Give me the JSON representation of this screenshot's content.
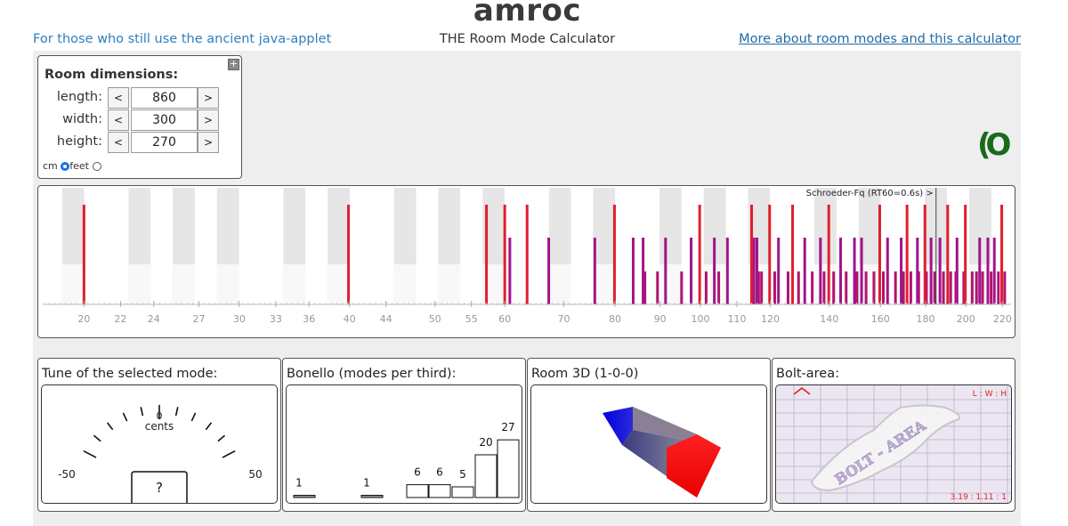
{
  "header": {
    "title": "amroc",
    "subtitle": "THE Room Mode Calculator",
    "java_link": "For those who still use the ancient java-applet",
    "more_link": "More about room modes and this calculator"
  },
  "dimensions": {
    "heading": "Room dimensions:",
    "expand": "+",
    "rows": [
      {
        "label": "length:",
        "value": "860",
        "dec": "<",
        "inc": ">"
      },
      {
        "label": "width:",
        "value": "300",
        "dec": "<",
        "inc": ">"
      },
      {
        "label": "height:",
        "value": "270",
        "dec": "<",
        "inc": ">"
      }
    ],
    "unit_cm": "cm",
    "unit_feet": "feet",
    "selected_unit": "cm"
  },
  "logo_text": "(O",
  "keyboard": {
    "schroeder_label": "Schroeder-Fq (RT60=0.6s) >",
    "schroeder_hz": 185,
    "freq_min": 18,
    "freq_max": 225,
    "tick_labels": [
      "20",
      "22",
      "24",
      "27",
      "30",
      "33",
      "36",
      "40",
      "44",
      "50",
      "55",
      "60",
      "70",
      "80",
      "90",
      "100",
      "110",
      "120",
      "140",
      "160",
      "180",
      "200",
      "220"
    ],
    "axial_color": "#e01e2e",
    "tangential_color": "#a0148c",
    "oblique_color": "#b01470",
    "axial_modes": [
      20.0,
      39.9,
      57.2,
      60.0,
      63.6,
      79.9,
      99.8,
      114.3,
      119.8,
      127.2,
      139.8,
      159.7,
      171.5,
      179.7,
      190.7,
      199.7,
      219.6
    ],
    "tangential_modes": [
      60.8,
      67.3,
      75.9,
      83.9,
      86.1,
      91.3,
      97.6,
      103.7,
      107.3,
      115.0,
      115.9,
      122.6,
      131.3,
      136.8,
      144.2,
      149.5,
      152.3,
      163.0,
      168.9,
      176.2,
      182.6,
      186.9,
      195.4,
      207.3,
      211.8,
      215.4
    ],
    "oblique_modes": [
      86.5,
      89.4,
      95.2,
      101.5,
      104.9,
      116.4,
      117.3,
      121.4,
      125.7,
      129.2,
      133.9,
      138.1,
      141.6,
      146.3,
      150.5,
      154.1,
      157.3,
      161.2,
      166.4,
      169.9,
      173.2,
      176.8,
      180.4,
      184.3,
      188.6,
      192.2,
      194.8,
      198.9,
      203.3,
      205.6,
      208.9,
      213.6,
      217.7,
      221.3
    ]
  },
  "tune": {
    "title": "Tune of the selected mode:",
    "zero": "0",
    "cents": "cents",
    "minus": "-50",
    "plus": "50",
    "readout": "?"
  },
  "bonello": {
    "title": "Bonello (modes per third):",
    "values": [
      1,
      1,
      6,
      6,
      5,
      20,
      27
    ]
  },
  "room3d": {
    "title": "Room 3D (1-0-0)"
  },
  "bolt": {
    "title": "Bolt-area:",
    "ratio_label": "L : W : H",
    "ratio_value": "3.19 : 1.11 : 1",
    "watermark": "BOLT - AREA",
    "accent": "#e02020"
  }
}
